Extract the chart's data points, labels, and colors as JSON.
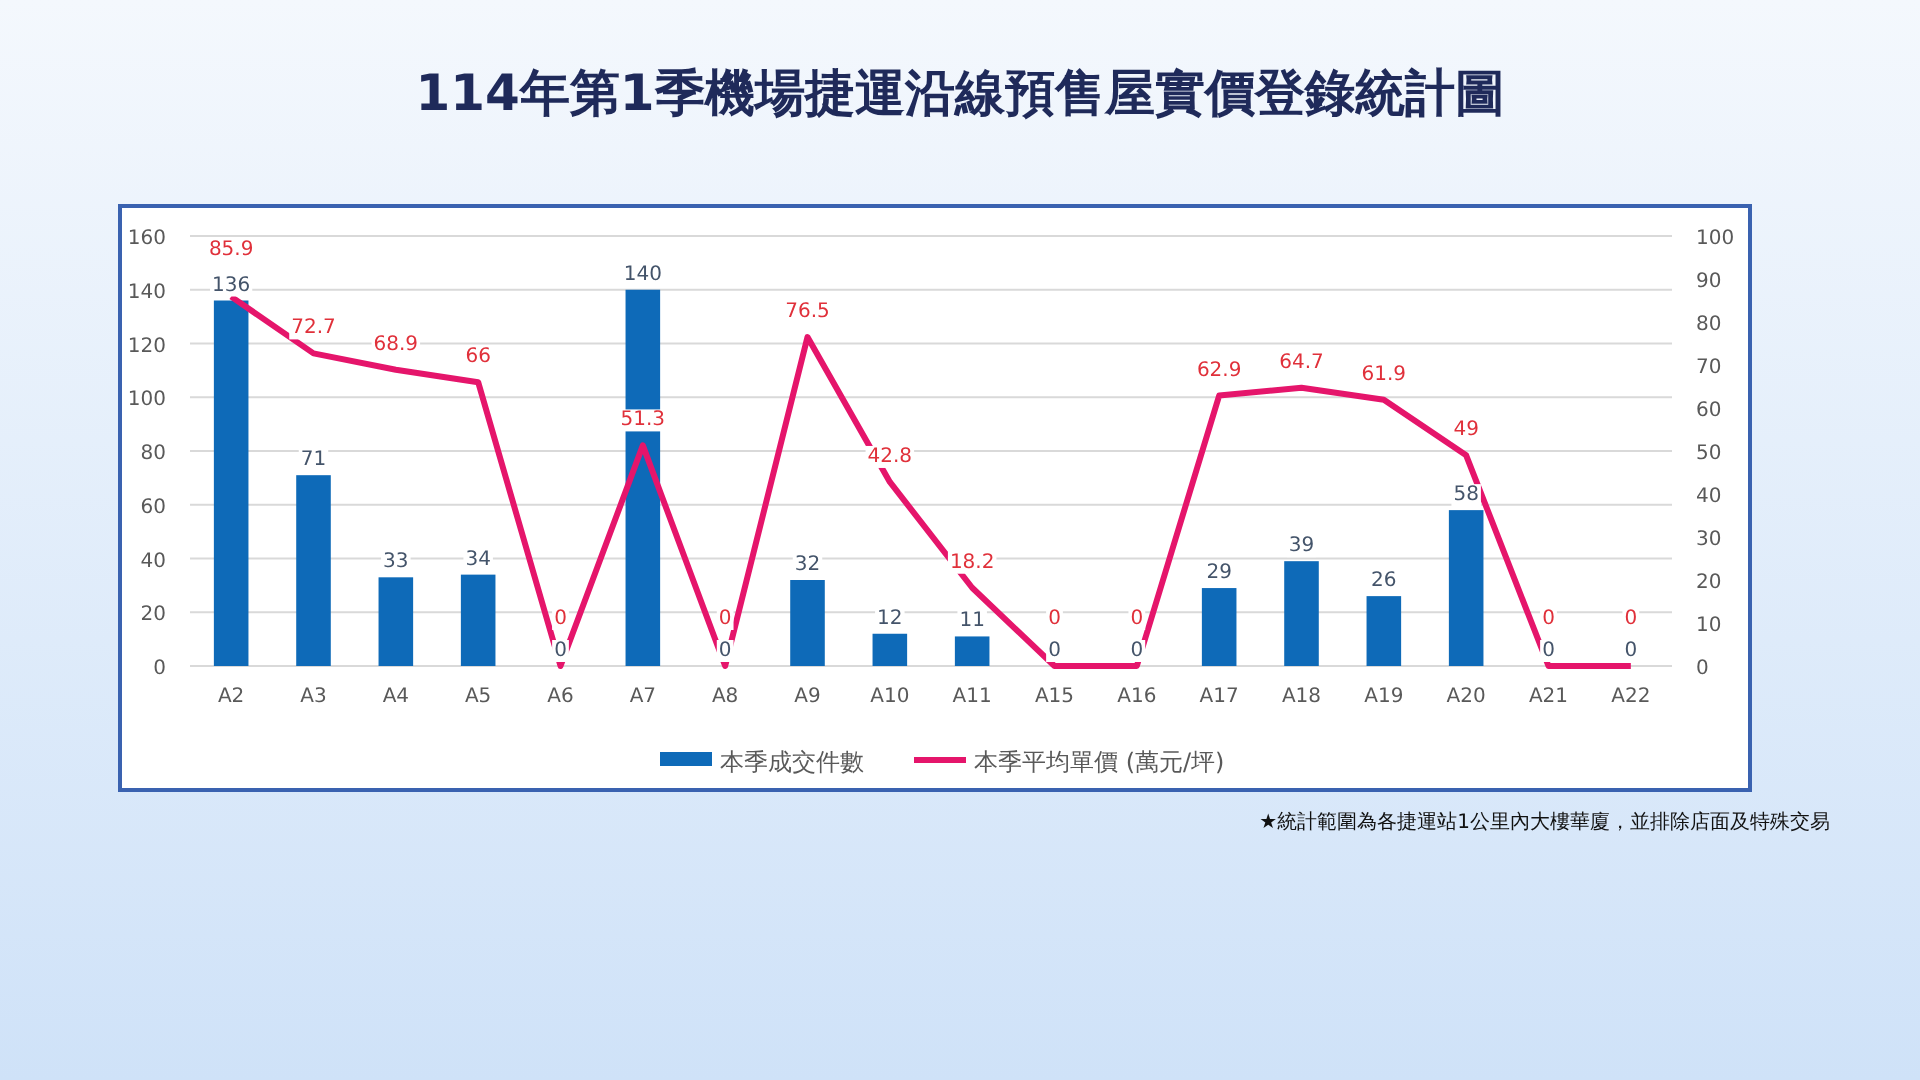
{
  "chart_data": {
    "type": "bar",
    "title": "114年第1季機場捷運沿線預售屋實價登錄統計圖",
    "categories": [
      "A2",
      "A3",
      "A4",
      "A5",
      "A6",
      "A7",
      "A8",
      "A9",
      "A10",
      "A11",
      "A15",
      "A16",
      "A17",
      "A18",
      "A19",
      "A20",
      "A21",
      "A22"
    ],
    "series": [
      {
        "name": "本季成交件數",
        "type": "bar",
        "color": "#0e6ab8",
        "values": [
          136,
          71,
          33,
          34,
          0,
          140,
          0,
          32,
          12,
          11,
          0,
          0,
          29,
          39,
          26,
          58,
          0,
          0
        ]
      },
      {
        "name": "本季平均單價 (萬元/坪)",
        "type": "line",
        "axis": "y2",
        "color": "#e5156b",
        "values": [
          85.9,
          72.7,
          68.9,
          66,
          0,
          51.3,
          0,
          76.5,
          42.8,
          18.2,
          0,
          0,
          62.9,
          64.7,
          61.9,
          49,
          0,
          0
        ]
      }
    ],
    "ylim": [
      0,
      160
    ],
    "yticks": [
      0,
      20,
      40,
      60,
      80,
      100,
      120,
      140,
      160
    ],
    "y2lim": [
      0,
      100
    ],
    "y2ticks": [
      0,
      10,
      20,
      30,
      40,
      50,
      60,
      70,
      80,
      90,
      100
    ],
    "grid": "y",
    "legend": "bottom",
    "data_labels": true,
    "marker": "none",
    "annotations": [
      "★統計範圍為各捷運站1公里內大樓華廈，並排除店面及特殊交易"
    ]
  }
}
